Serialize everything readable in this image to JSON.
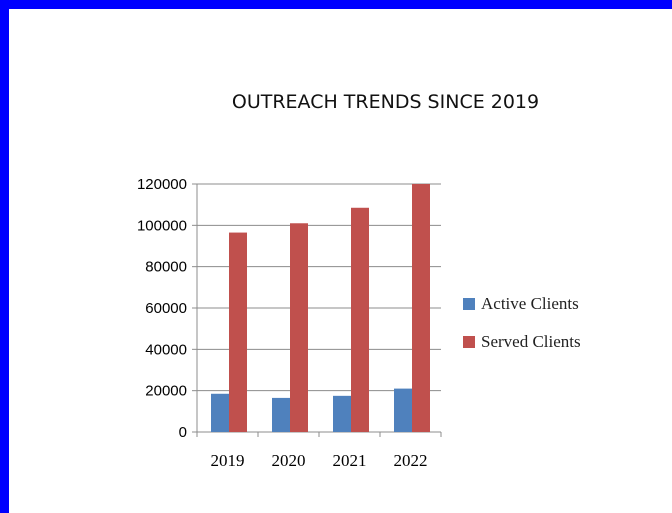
{
  "chart_data": {
    "type": "bar",
    "title": "OUTREACH TRENDS SINCE 2019",
    "categories": [
      "2019",
      "2020",
      "2021",
      "2022"
    ],
    "series": [
      {
        "name": "Active Clients",
        "values": [
          18500,
          16500,
          17500,
          21000
        ],
        "color": "#4f81bd"
      },
      {
        "name": "Served Clients",
        "values": [
          96500,
          101000,
          108500,
          120000
        ],
        "color": "#c0504d"
      }
    ],
    "ylim": [
      0,
      120000
    ],
    "yticks": [
      0,
      20000,
      40000,
      60000,
      80000,
      100000,
      120000
    ],
    "grid": true,
    "legend": "right",
    "xlabel": "",
    "ylabel": ""
  },
  "colors": {
    "frame": "#0000ff",
    "background": "#ffffff",
    "grid": "#8c8c8c",
    "axis": "#8c8c8c"
  }
}
